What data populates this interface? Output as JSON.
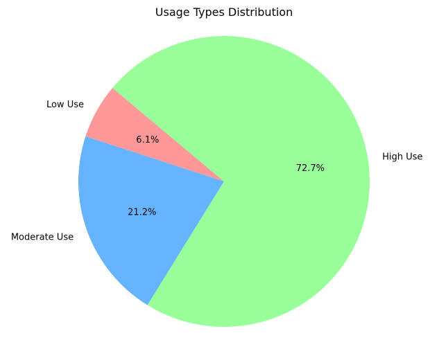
{
  "chart_data": {
    "type": "pie",
    "title": "Usage Types Distribution",
    "slices": [
      {
        "label": "Low Use",
        "value": 6.1,
        "pct_label": "6.1%",
        "color": "#ff9999"
      },
      {
        "label": "Moderate Use",
        "value": 21.2,
        "pct_label": "21.2%",
        "color": "#66b3ff"
      },
      {
        "label": "High Use",
        "value": 72.7,
        "pct_label": "72.7%",
        "color": "#99ff99"
      }
    ],
    "start_angle_deg": 140,
    "direction": "counterclockwise",
    "legend": "none"
  }
}
